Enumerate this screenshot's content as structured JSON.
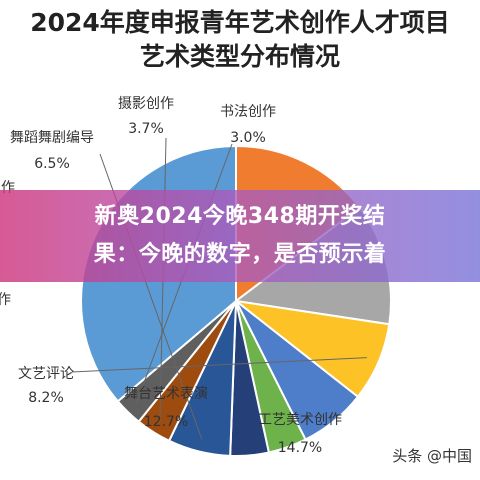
{
  "chart_data": {
    "type": "pie",
    "title_line1": "2024年度申报青年艺术创作人才项目",
    "title_line2": "艺术类型分布情况",
    "slices": [
      {
        "label": "工艺美术创作",
        "value": 14.7,
        "value_label": "14.7%",
        "color": "#f07d2f"
      },
      {
        "label": "舞台艺术表演",
        "value": 12.7,
        "value_label": "12.7%",
        "color": "#a7a7a7"
      },
      {
        "label": "文艺评论",
        "value": 8.2,
        "value_label": "8.2%",
        "color": "#fdc226"
      },
      {
        "label": "作",
        "value": 7.0,
        "value_label": "",
        "color": "#4e7dc9"
      },
      {
        "label": "",
        "value": 4.0,
        "value_label": "",
        "color": "#6db24a"
      },
      {
        "label": "作",
        "value": 4.0,
        "value_label": "",
        "color": "#253f78"
      },
      {
        "label": "舞蹈舞剧编导",
        "value": 6.5,
        "value_label": "6.5%",
        "color": "#285696"
      },
      {
        "label": "摄影创作",
        "value": 3.7,
        "value_label": "3.7%",
        "color": "#9e4b10"
      },
      {
        "label": "书法创作",
        "value": 3.0,
        "value_label": "3.0%",
        "color": "#5f5f5f"
      },
      {
        "label": "",
        "value": 36.2,
        "value_label": "",
        "color": "#5b9bd5"
      }
    ]
  },
  "overlay": {
    "line1": "新奥2024今晚348期开奖结",
    "line2": "果：今晚的数字，是否预示着"
  },
  "watermark": "头条 @中国"
}
